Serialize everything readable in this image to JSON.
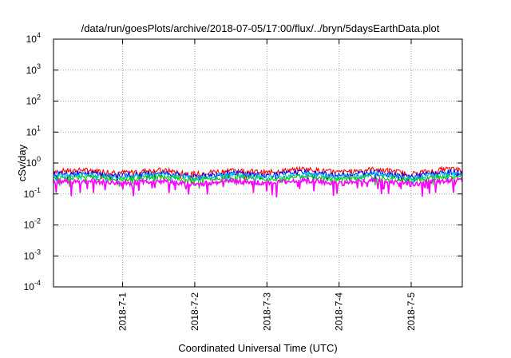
{
  "chart_data": {
    "type": "line",
    "title": "/data/run/goesPlots/archive/2018-07-05/17:00/flux/../bryn/5daysEarthData.plot",
    "xlabel": "Coordinated Universal Time (UTC)",
    "ylabel": "cSv/day",
    "yscale": "log",
    "ylim": [
      0.0001,
      10000
    ],
    "y_ticks": [
      {
        "base": "10",
        "exp": "-4",
        "value": 0.0001
      },
      {
        "base": "10",
        "exp": "-3",
        "value": 0.001
      },
      {
        "base": "10",
        "exp": "-2",
        "value": 0.01
      },
      {
        "base": "10",
        "exp": "-1",
        "value": 0.1
      },
      {
        "base": "10",
        "exp": "0",
        "value": 1
      },
      {
        "base": "10",
        "exp": "1",
        "value": 10
      },
      {
        "base": "10",
        "exp": "2",
        "value": 100
      },
      {
        "base": "10",
        "exp": "3",
        "value": 1000
      },
      {
        "base": "10",
        "exp": "4",
        "value": 10000
      }
    ],
    "xlim": [
      "2018-06-30 01:00",
      "2018-07-05 17:00"
    ],
    "x_ticks": [
      "2018-7-1",
      "2018-7-2",
      "2018-7-3",
      "2018-7-4",
      "2018-7-5"
    ],
    "grid": true,
    "x": [
      "2018-06-30 00:00",
      "2018-06-30 12:00",
      "2018-07-01 00:00",
      "2018-07-01 12:00",
      "2018-07-02 00:00",
      "2018-07-02 12:00",
      "2018-07-03 00:00",
      "2018-07-03 12:00",
      "2018-07-04 00:00",
      "2018-07-04 12:00",
      "2018-07-05 00:00",
      "2018-07-05 12:00",
      "2018-07-05 17:00"
    ],
    "series": [
      {
        "color": "#ff0000",
        "values": [
          0.55,
          0.6,
          0.5,
          0.6,
          0.45,
          0.6,
          0.5,
          0.65,
          0.5,
          0.65,
          0.45,
          0.65,
          0.6
        ]
      },
      {
        "color": "#0000ff",
        "values": [
          0.45,
          0.48,
          0.4,
          0.5,
          0.36,
          0.5,
          0.4,
          0.52,
          0.4,
          0.52,
          0.37,
          0.52,
          0.5
        ]
      },
      {
        "color": "#00c0ff",
        "values": [
          0.4,
          0.42,
          0.35,
          0.44,
          0.32,
          0.44,
          0.35,
          0.45,
          0.35,
          0.46,
          0.33,
          0.46,
          0.44
        ]
      },
      {
        "color": "#00d000",
        "values": [
          0.33,
          0.35,
          0.3,
          0.36,
          0.27,
          0.36,
          0.3,
          0.37,
          0.3,
          0.37,
          0.28,
          0.37,
          0.36
        ]
      },
      {
        "color": "#ff00ff",
        "values": [
          0.25,
          0.26,
          0.22,
          0.27,
          0.2,
          0.27,
          0.22,
          0.28,
          0.22,
          0.28,
          0.21,
          0.28,
          0.27
        ]
      }
    ]
  }
}
